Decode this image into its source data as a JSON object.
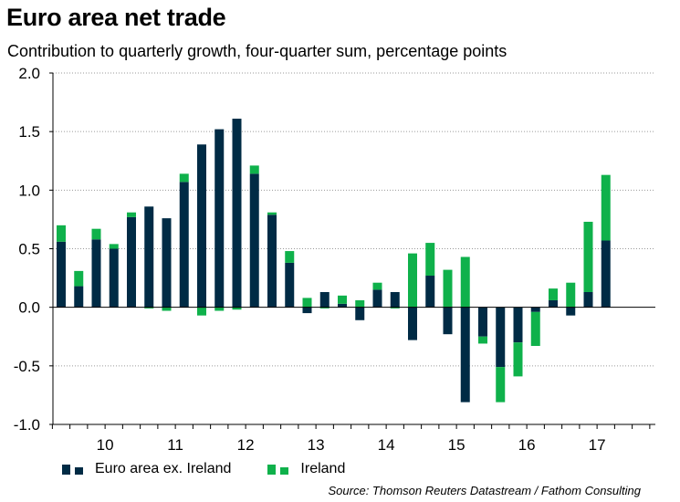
{
  "title": "Euro area net trade",
  "subtitle": "Contribution to quarterly growth, four-quarter sum, percentage points",
  "source": "Source: Thomson Reuters Datastream / Fathom Consulting",
  "colors": {
    "euro_ex_ireland": "#002b45",
    "ireland": "#0fb14b",
    "grid": "#9a9a9a",
    "axis": "#000000"
  },
  "chart_data": {
    "type": "bar",
    "stacked": true,
    "title": "Euro area net trade",
    "subtitle": "Contribution to quarterly growth, four-quarter sum, percentage points",
    "xlabel": "",
    "ylabel": "",
    "ylim": [
      -1.0,
      2.0
    ],
    "yticks": [
      "2.0",
      "1.5",
      "1.0",
      "0.5",
      "0.0",
      "-0.5",
      "-1.0"
    ],
    "ytick_values": [
      2.0,
      1.5,
      1.0,
      0.5,
      0.0,
      -0.5,
      -1.0
    ],
    "year_labels": [
      "10",
      "11",
      "12",
      "13",
      "14",
      "15",
      "16",
      "17"
    ],
    "categories": [
      "2009Q4",
      "2010Q1",
      "2010Q2",
      "2010Q3",
      "2010Q4",
      "2011Q1",
      "2011Q2",
      "2011Q3",
      "2011Q4",
      "2012Q1",
      "2012Q2",
      "2012Q3",
      "2012Q4",
      "2013Q1",
      "2013Q2",
      "2013Q3",
      "2013Q4",
      "2014Q1",
      "2014Q2",
      "2014Q3",
      "2014Q4",
      "2015Q1",
      "2015Q2",
      "2015Q3",
      "2015Q4",
      "2016Q1",
      "2016Q2",
      "2016Q3",
      "2016Q4",
      "2017Q1",
      "2017Q2",
      "2017Q3"
    ],
    "grid": true,
    "legend_position": "bottom",
    "series": [
      {
        "name": "Euro area ex. Ireland",
        "values": [
          0.56,
          0.18,
          0.58,
          0.5,
          0.77,
          0.86,
          0.76,
          1.07,
          1.39,
          1.52,
          1.61,
          1.14,
          0.79,
          0.38,
          -0.05,
          0.13,
          0.03,
          -0.11,
          0.15,
          0.13,
          -0.28,
          0.27,
          -0.23,
          -0.81,
          -0.25,
          -0.51,
          -0.3,
          -0.04,
          0.06,
          -0.07,
          0.13,
          0.57
        ]
      },
      {
        "name": "Ireland",
        "values": [
          0.14,
          0.13,
          0.09,
          0.04,
          0.04,
          -0.01,
          -0.03,
          0.07,
          -0.07,
          -0.03,
          -0.02,
          0.07,
          0.02,
          0.1,
          0.08,
          -0.01,
          0.07,
          0.06,
          0.06,
          -0.01,
          0.46,
          0.28,
          0.32,
          0.43,
          -0.06,
          -0.3,
          -0.29,
          -0.29,
          0.1,
          0.21,
          0.6,
          0.56
        ]
      }
    ]
  },
  "legend": {
    "items": [
      {
        "label": "Euro area ex. Ireland"
      },
      {
        "label": "Ireland"
      }
    ]
  }
}
